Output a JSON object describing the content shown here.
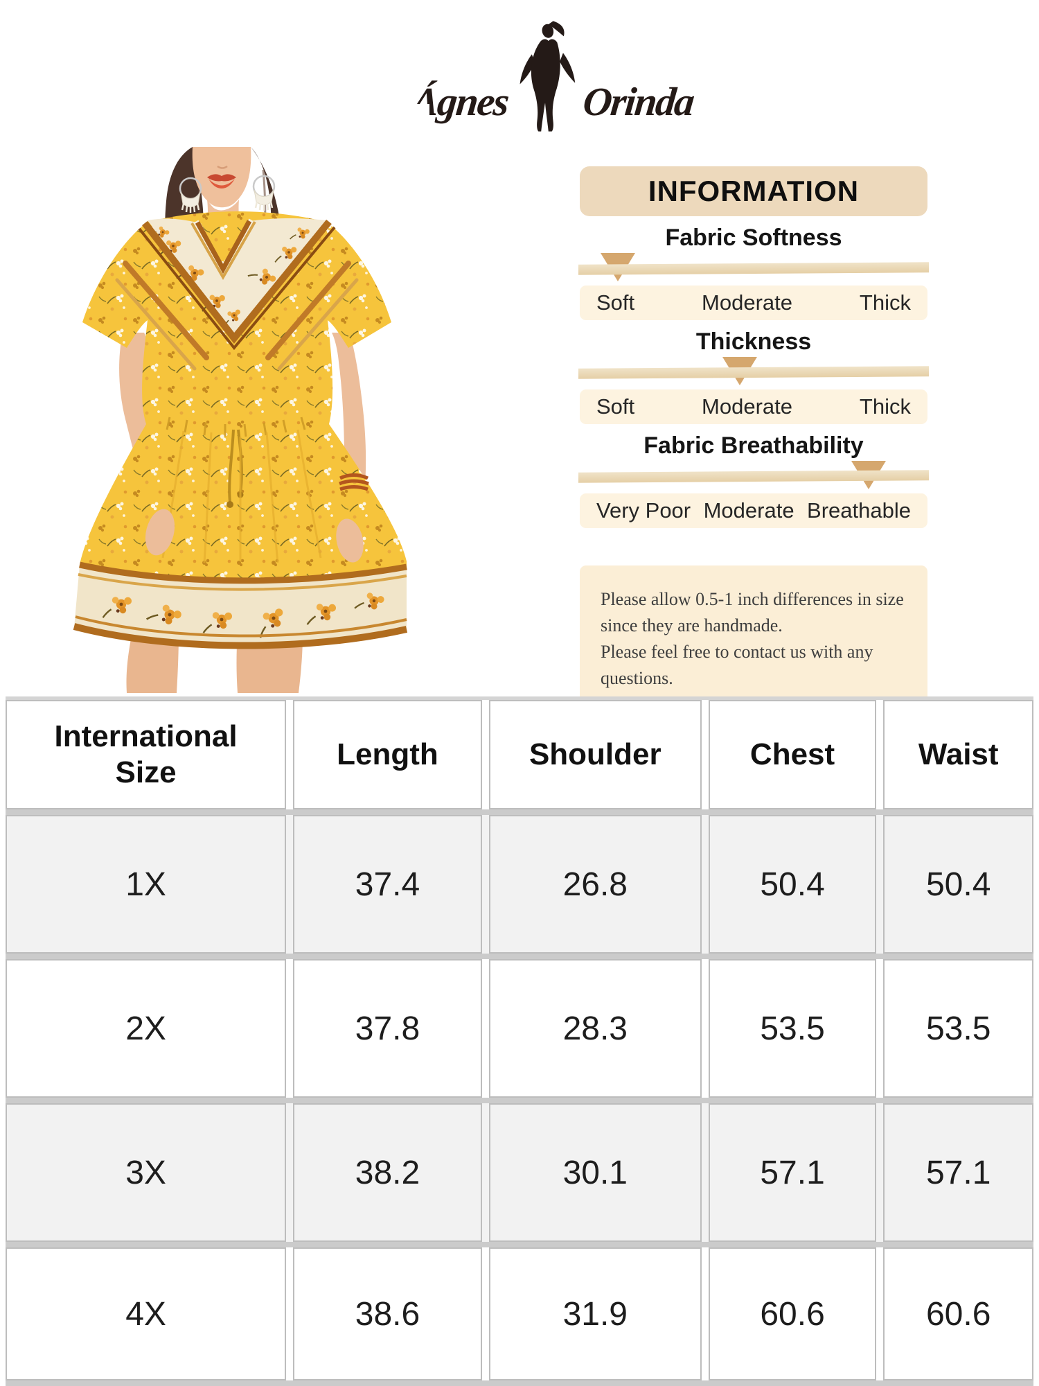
{
  "brand": {
    "first": "Ágnes",
    "second": "Orinda"
  },
  "info": {
    "header": "INFORMATION",
    "metrics": [
      {
        "title": "Fabric Softness",
        "labels": [
          "Soft",
          "Moderate",
          "Thick"
        ],
        "marker_percent": 11
      },
      {
        "title": "Thickness",
        "labels": [
          "Soft",
          "Moderate",
          "Thick"
        ],
        "marker_percent": 46
      },
      {
        "title": "Fabric Breathability",
        "labels": [
          "Very Poor",
          "Moderate",
          "Breathable"
        ],
        "marker_percent": 83
      }
    ],
    "note_lines": [
      "Please allow 0.5-1 inch differences in size",
      "since they are handmade.",
      "Please feel free to contact us with any questions."
    ]
  },
  "size_table": {
    "columns": [
      "International Size",
      "Length",
      "Shoulder",
      "Chest",
      "Waist"
    ],
    "rows": [
      {
        "size": "1X",
        "values": [
          "37.4",
          "26.8",
          "50.4",
          "50.4"
        ]
      },
      {
        "size": "2X",
        "values": [
          "37.8",
          "28.3",
          "53.5",
          "53.5"
        ]
      },
      {
        "size": "3X",
        "values": [
          "38.2",
          "30.1",
          "57.1",
          "57.1"
        ]
      },
      {
        "size": "4X",
        "values": [
          "38.6",
          "31.9",
          "60.6",
          "60.6"
        ]
      }
    ]
  },
  "colors": {
    "banner_bg": "#edd9bc",
    "track": "#e8d5b2",
    "marker": "#d5a76e",
    "label_row_bg": "#fdf3e0",
    "note_bg": "#fbeed6",
    "row_alt_bg": "#f2f2f2",
    "cell_border": "#bdbdbd",
    "row_gap": "#cbcbcb",
    "dress_yellow": "#f6c43c",
    "dress_cream": "#f3e9d2",
    "dress_trim": "#b06c1e"
  }
}
